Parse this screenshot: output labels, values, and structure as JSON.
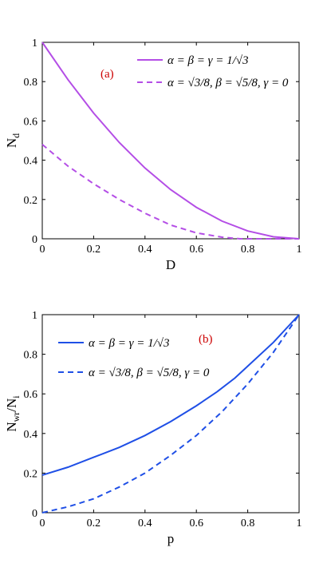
{
  "chart_data": [
    {
      "type": "line",
      "panel_label": "(a)",
      "xlabel": "D",
      "ylabel_main": "N",
      "ylabel_sub": "d",
      "xlim": [
        0,
        1
      ],
      "ylim": [
        0,
        1
      ],
      "xticks": [
        "0",
        "0.2",
        "0.4",
        "0.6",
        "0.8",
        "1"
      ],
      "yticks": [
        "0",
        "0.2",
        "0.4",
        "0.6",
        "0.8",
        "1"
      ],
      "grid": false,
      "legend_position": "top-right",
      "color": "#b44ee6",
      "series": [
        {
          "name": "α = β = γ = 1/√3",
          "style": "solid",
          "x": [
            0,
            0.1,
            0.2,
            0.3,
            0.4,
            0.5,
            0.6,
            0.7,
            0.8,
            0.9,
            1.0
          ],
          "y": [
            1.0,
            0.81,
            0.64,
            0.49,
            0.36,
            0.25,
            0.16,
            0.09,
            0.04,
            0.01,
            0.0
          ]
        },
        {
          "name": "α = √3/8, β = √5/8, γ = 0",
          "style": "dashed",
          "x": [
            0,
            0.1,
            0.2,
            0.3,
            0.4,
            0.5,
            0.6,
            0.7,
            0.77,
            0.8,
            0.9,
            1.0
          ],
          "y": [
            0.48,
            0.37,
            0.28,
            0.2,
            0.13,
            0.07,
            0.03,
            0.008,
            0.0,
            0.0,
            0.0,
            0.0
          ]
        }
      ]
    },
    {
      "type": "line",
      "panel_label": "(b)",
      "xlabel": "p",
      "ylabel_main": "N",
      "ylabel_sub": "wr",
      "ylabel_mid": "/N",
      "ylabel_sub2": "i",
      "xlim": [
        0,
        1
      ],
      "ylim": [
        0,
        1
      ],
      "xticks": [
        "0",
        "0.2",
        "0.4",
        "0.6",
        "0.8",
        "1"
      ],
      "yticks": [
        "0",
        "0.2",
        "0.4",
        "0.6",
        "0.8",
        "1"
      ],
      "grid": false,
      "legend_position": "top-left",
      "color": "#1f4fe6",
      "series": [
        {
          "name": "α = β = γ = 1/√3",
          "style": "solid",
          "x": [
            0,
            0.1,
            0.2,
            0.3,
            0.4,
            0.5,
            0.6,
            0.68
          ],
          "y": [
            0.19,
            0.23,
            0.28,
            0.33,
            0.39,
            0.46,
            0.54,
            0.61
          ]
        },
        {
          "name": "α = √3/8, β = √5/8, γ = 0",
          "style": "dashed",
          "x": [
            0,
            0.1,
            0.2,
            0.3,
            0.4,
            0.5,
            0.6,
            0.7,
            0.8,
            0.9,
            1.0
          ],
          "y": [
            0.0,
            0.03,
            0.07,
            0.13,
            0.2,
            0.29,
            0.39,
            0.51,
            0.65,
            0.81,
            1.0
          ]
        },
        {
          "name": "",
          "style": "solid",
          "x": [
            0.68,
            0.75,
            0.8,
            0.9,
            1.0
          ],
          "y": [
            0.61,
            0.68,
            0.74,
            0.86,
            1.0
          ]
        }
      ]
    }
  ]
}
